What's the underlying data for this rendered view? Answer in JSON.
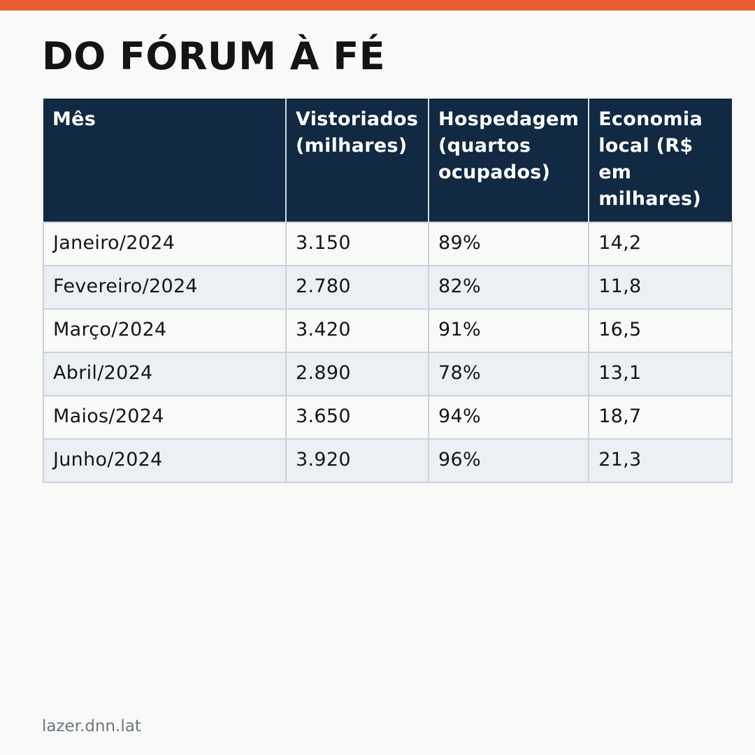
{
  "title": "DO FÓRUM À FÉ",
  "colors": {
    "accent_bar": "#e85d32",
    "header_background": "#112942",
    "header_text": "#ffffff",
    "row_alt_background": "#ecf0f2",
    "page_background": "#f9f9f7"
  },
  "table": {
    "headers": [
      "Mês",
      "Vistoriados (milhares)",
      "Hospedagem (quartos ocupados)",
      "Economia local (R$ em milhares)"
    ],
    "rows": [
      [
        "Janeiro/2024",
        "3.150",
        "89%",
        "14,2"
      ],
      [
        "Fevereiro/2024",
        "2.780",
        "82%",
        "11,8"
      ],
      [
        "Março/2024",
        "3.420",
        "91%",
        "16,5"
      ],
      [
        "Abril/2024",
        "2.890",
        "78%",
        "13,1"
      ],
      [
        "Maios/2024",
        "3.650",
        "94%",
        "18,7"
      ],
      [
        "Junho/2024",
        "3.920",
        "96%",
        "21,3"
      ]
    ]
  },
  "footer": {
    "source": "lazer.dnn.lat"
  }
}
